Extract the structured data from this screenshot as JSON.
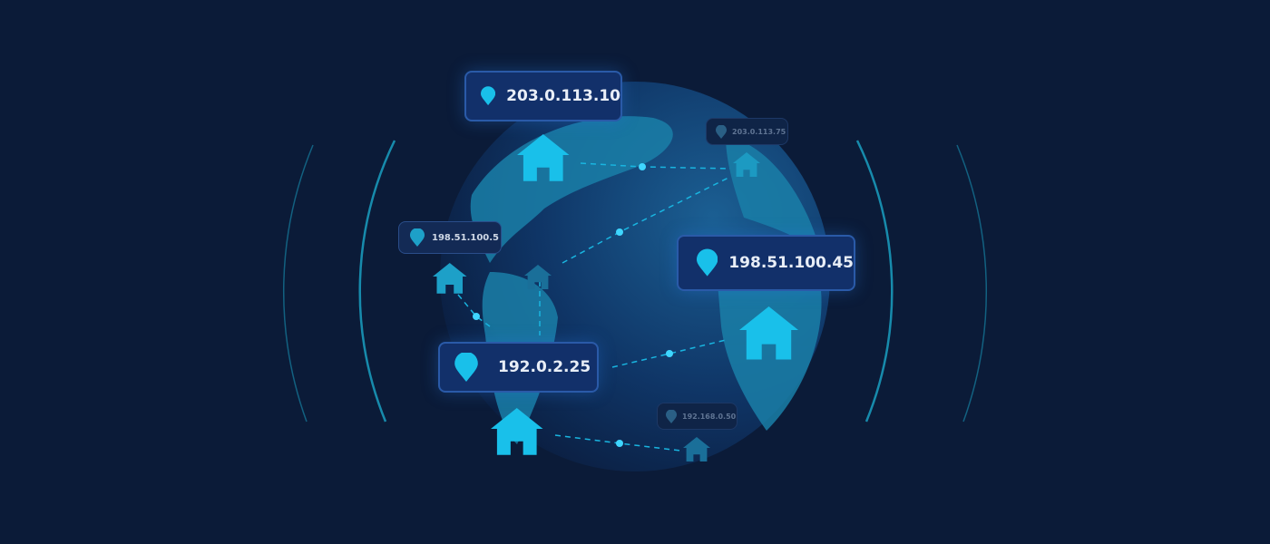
{
  "colors": {
    "background": "#0b1b38",
    "accent": "#19c0ea",
    "label_bg": "#12306a"
  },
  "locations": [
    {
      "ip": "203.0.113.10",
      "icon": "map-pin-icon",
      "home_icon": "house-icon"
    },
    {
      "ip": "203.0.113.75",
      "icon": "map-pin-icon",
      "home_icon": "house-icon"
    },
    {
      "ip": "198.51.100.5",
      "icon": "map-pin-icon",
      "home_icon": "house-icon"
    },
    {
      "ip": "198.51.100.45",
      "icon": "map-pin-icon",
      "home_icon": "house-icon"
    },
    {
      "ip": "192.0.2.25",
      "icon": "map-pin-icon",
      "home_icon": "house-icon"
    },
    {
      "ip": "192.168.0.50",
      "icon": "map-pin-icon",
      "home_icon": "house-icon"
    }
  ]
}
